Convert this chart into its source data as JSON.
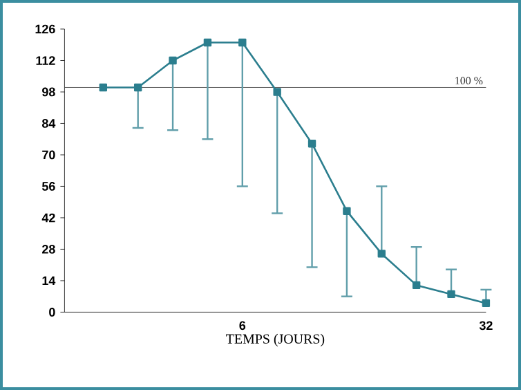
{
  "chart_data": {
    "type": "line",
    "xlabel": "TEMPS (JOURS)",
    "categories": [
      null,
      null,
      null,
      null,
      "6",
      null,
      null,
      null,
      null,
      null,
      null,
      "32"
    ],
    "values": [
      100,
      100,
      112,
      120,
      120,
      98,
      75,
      45,
      26,
      12,
      8,
      4
    ],
    "errors": [
      null,
      [
        82,
        100
      ],
      [
        81,
        112
      ],
      [
        77,
        120
      ],
      [
        56,
        120
      ],
      [
        44,
        98
      ],
      [
        20,
        75
      ],
      [
        7,
        45
      ],
      [
        26,
        56
      ],
      [
        12,
        29
      ],
      [
        8,
        19
      ],
      [
        4,
        10
      ]
    ],
    "color": "#2b7e8e",
    "marker": "square",
    "line_style": "solid",
    "ylim": [
      0,
      126
    ],
    "yticks": [
      0,
      14,
      28,
      42,
      56,
      70,
      84,
      98,
      112,
      126
    ],
    "ref_lines": [
      {
        "axis": "y",
        "value": 100,
        "label": "100 %",
        "color": "#333333"
      }
    ]
  }
}
